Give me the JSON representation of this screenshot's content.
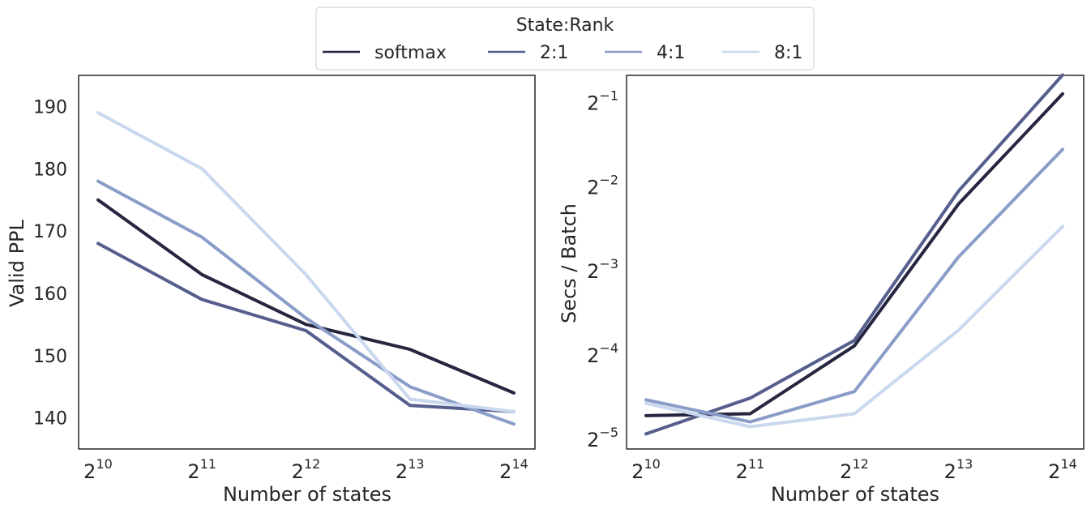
{
  "legend": {
    "title": "State:Rank",
    "entries": [
      {
        "label": "softmax",
        "color": "#262641"
      },
      {
        "label": "2:1",
        "color": "#565e8d"
      },
      {
        "label": "4:1",
        "color": "#8a9dc8"
      },
      {
        "label": "8:1",
        "color": "#c9d8ee"
      }
    ]
  },
  "chart_data": [
    {
      "type": "line",
      "xlabel": "Number of states",
      "ylabel": "Valid PPL",
      "x": [
        1024,
        2048,
        4096,
        8192,
        16384
      ],
      "x_tick_labels": [
        {
          "base": "2",
          "exp": "10"
        },
        {
          "base": "2",
          "exp": "11"
        },
        {
          "base": "2",
          "exp": "12"
        },
        {
          "base": "2",
          "exp": "13"
        },
        {
          "base": "2",
          "exp": "14"
        }
      ],
      "x_scale": "log2",
      "y_scale": "linear",
      "ylim": [
        135,
        195
      ],
      "y_ticks": [
        140,
        150,
        160,
        170,
        180,
        190
      ],
      "y_tick_labels": [
        "140",
        "150",
        "160",
        "170",
        "180",
        "190"
      ],
      "series": [
        {
          "name": "softmax",
          "values": [
            175,
            163,
            155,
            151,
            144
          ]
        },
        {
          "name": "2:1",
          "values": [
            168,
            159,
            154,
            142,
            141
          ]
        },
        {
          "name": "4:1",
          "values": [
            178,
            169,
            156,
            145,
            139
          ]
        },
        {
          "name": "8:1",
          "values": [
            189,
            180,
            163,
            143,
            141
          ]
        }
      ],
      "grid": false
    },
    {
      "type": "line",
      "xlabel": "Number of states",
      "ylabel": "Secs / Batch",
      "x": [
        1024,
        2048,
        4096,
        8192,
        16384
      ],
      "x_tick_labels": [
        {
          "base": "2",
          "exp": "10"
        },
        {
          "base": "2",
          "exp": "11"
        },
        {
          "base": "2",
          "exp": "12"
        },
        {
          "base": "2",
          "exp": "13"
        },
        {
          "base": "2",
          "exp": "14"
        }
      ],
      "x_scale": "log2",
      "y_scale": "log2",
      "ylim": [
        0.0288,
        0.625
      ],
      "y_ticks": [
        0.03125,
        0.0625,
        0.125,
        0.25,
        0.5
      ],
      "y_tick_labels": [
        {
          "base": "2",
          "exp": "−5"
        },
        {
          "base": "2",
          "exp": "−4"
        },
        {
          "base": "2",
          "exp": "−3"
        },
        {
          "base": "2",
          "exp": "−2"
        },
        {
          "base": "2",
          "exp": "−1"
        }
      ],
      "series": [
        {
          "name": "softmax",
          "values": [
            0.0379,
            0.0385,
            0.0673,
            0.2165,
            0.5366
          ]
        },
        {
          "name": "2:1",
          "values": [
            0.0326,
            0.0438,
            0.0704,
            0.2409,
            0.6271
          ]
        },
        {
          "name": "4:1",
          "values": [
            0.0432,
            0.036,
            0.0462,
            0.14,
            0.3397
          ]
        },
        {
          "name": "8:1",
          "values": [
            0.042,
            0.0346,
            0.0385,
            0.0766,
            0.1801
          ]
        }
      ],
      "grid": false
    }
  ]
}
